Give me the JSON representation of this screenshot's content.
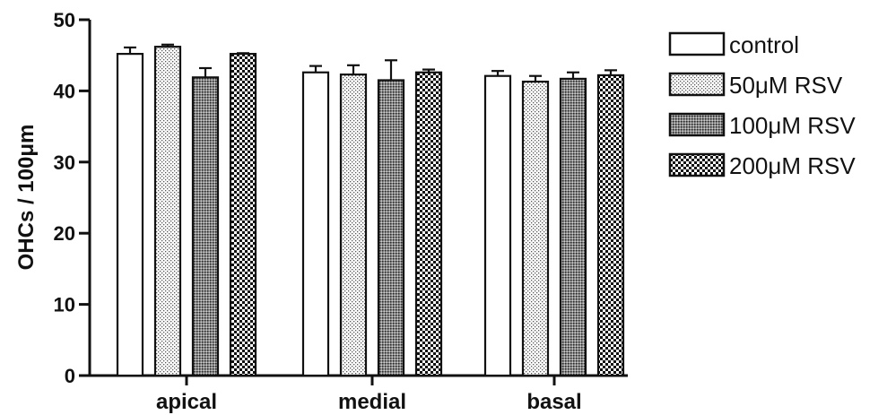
{
  "chart_data": {
    "type": "bar",
    "ylabel": "OHCs / 100μm",
    "xlabel": "",
    "title": "",
    "ylim": [
      0,
      50
    ],
    "yticks": [
      "0",
      "10",
      "20",
      "30",
      "40",
      "50"
    ],
    "categories": [
      "apical",
      "medial",
      "basal"
    ],
    "legend_position": "right",
    "series": [
      {
        "name": "control",
        "pattern": "white",
        "values": [
          45.2,
          42.6,
          42.1
        ],
        "errors": [
          0.9,
          0.9,
          0.7
        ]
      },
      {
        "name": "50μM RSV",
        "pattern": "fine-dots",
        "values": [
          46.2,
          42.3,
          41.3
        ],
        "errors": [
          0.3,
          1.3,
          0.8
        ]
      },
      {
        "name": "100μM RSV",
        "pattern": "dense-grey",
        "values": [
          41.9,
          41.5,
          41.7
        ],
        "errors": [
          1.3,
          2.8,
          0.9
        ]
      },
      {
        "name": "200μM RSV",
        "pattern": "checkerboard",
        "values": [
          45.2,
          42.6,
          42.2
        ],
        "errors": [
          0.1,
          0.4,
          0.7
        ]
      }
    ],
    "grid": false
  }
}
